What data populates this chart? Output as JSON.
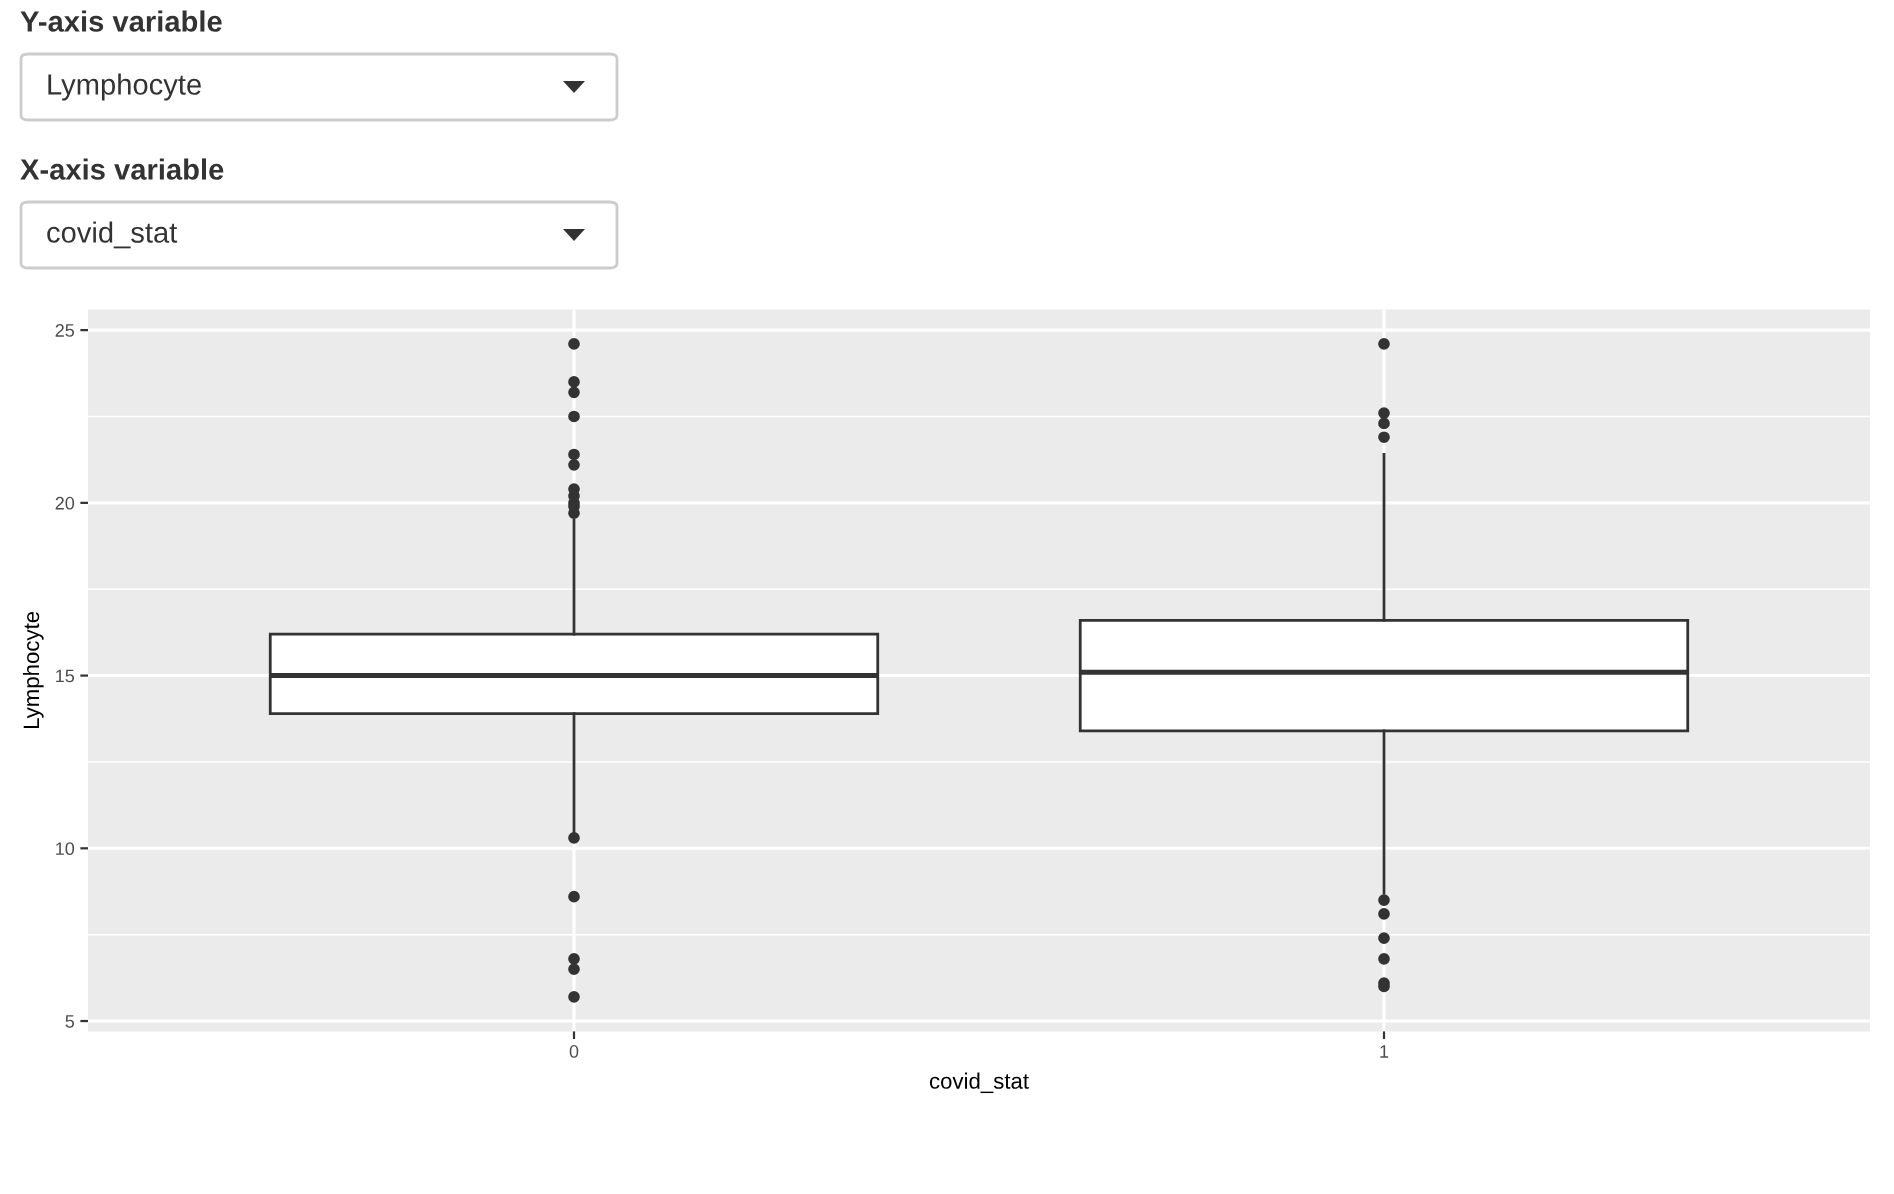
{
  "chart_data": {
    "type": "box",
    "xlabel": "covid_stat",
    "ylabel": "Lymphocyte",
    "categories": [
      "0",
      "1"
    ],
    "color": "#333333",
    "marker": "circle",
    "boxes": [
      {
        "low": 10.4,
        "q1": 13.9,
        "median": 15.0,
        "q3": 16.2,
        "high": 19.5,
        "outliers": [
          24.6,
          23.5,
          23.2,
          22.5,
          21.4,
          21.1,
          20.4,
          20.2,
          20.0,
          19.9,
          19.7,
          10.3,
          8.6,
          6.8,
          6.5,
          5.7
        ]
      },
      {
        "low": 8.7,
        "q1": 13.4,
        "median": 15.1,
        "q3": 16.6,
        "high": 21.4,
        "outliers": [
          24.6,
          22.6,
          22.3,
          21.9,
          8.5,
          8.1,
          7.4,
          6.8,
          6.1,
          6.0
        ]
      }
    ],
    "ylim": [
      4.7,
      25.6
    ],
    "yticks": [
      5,
      10,
      15,
      20,
      25
    ],
    "grid": true,
    "annotations": [
      "Y-axis variable",
      "Lymphocyte",
      "X-axis variable",
      "covid_stat"
    ]
  }
}
